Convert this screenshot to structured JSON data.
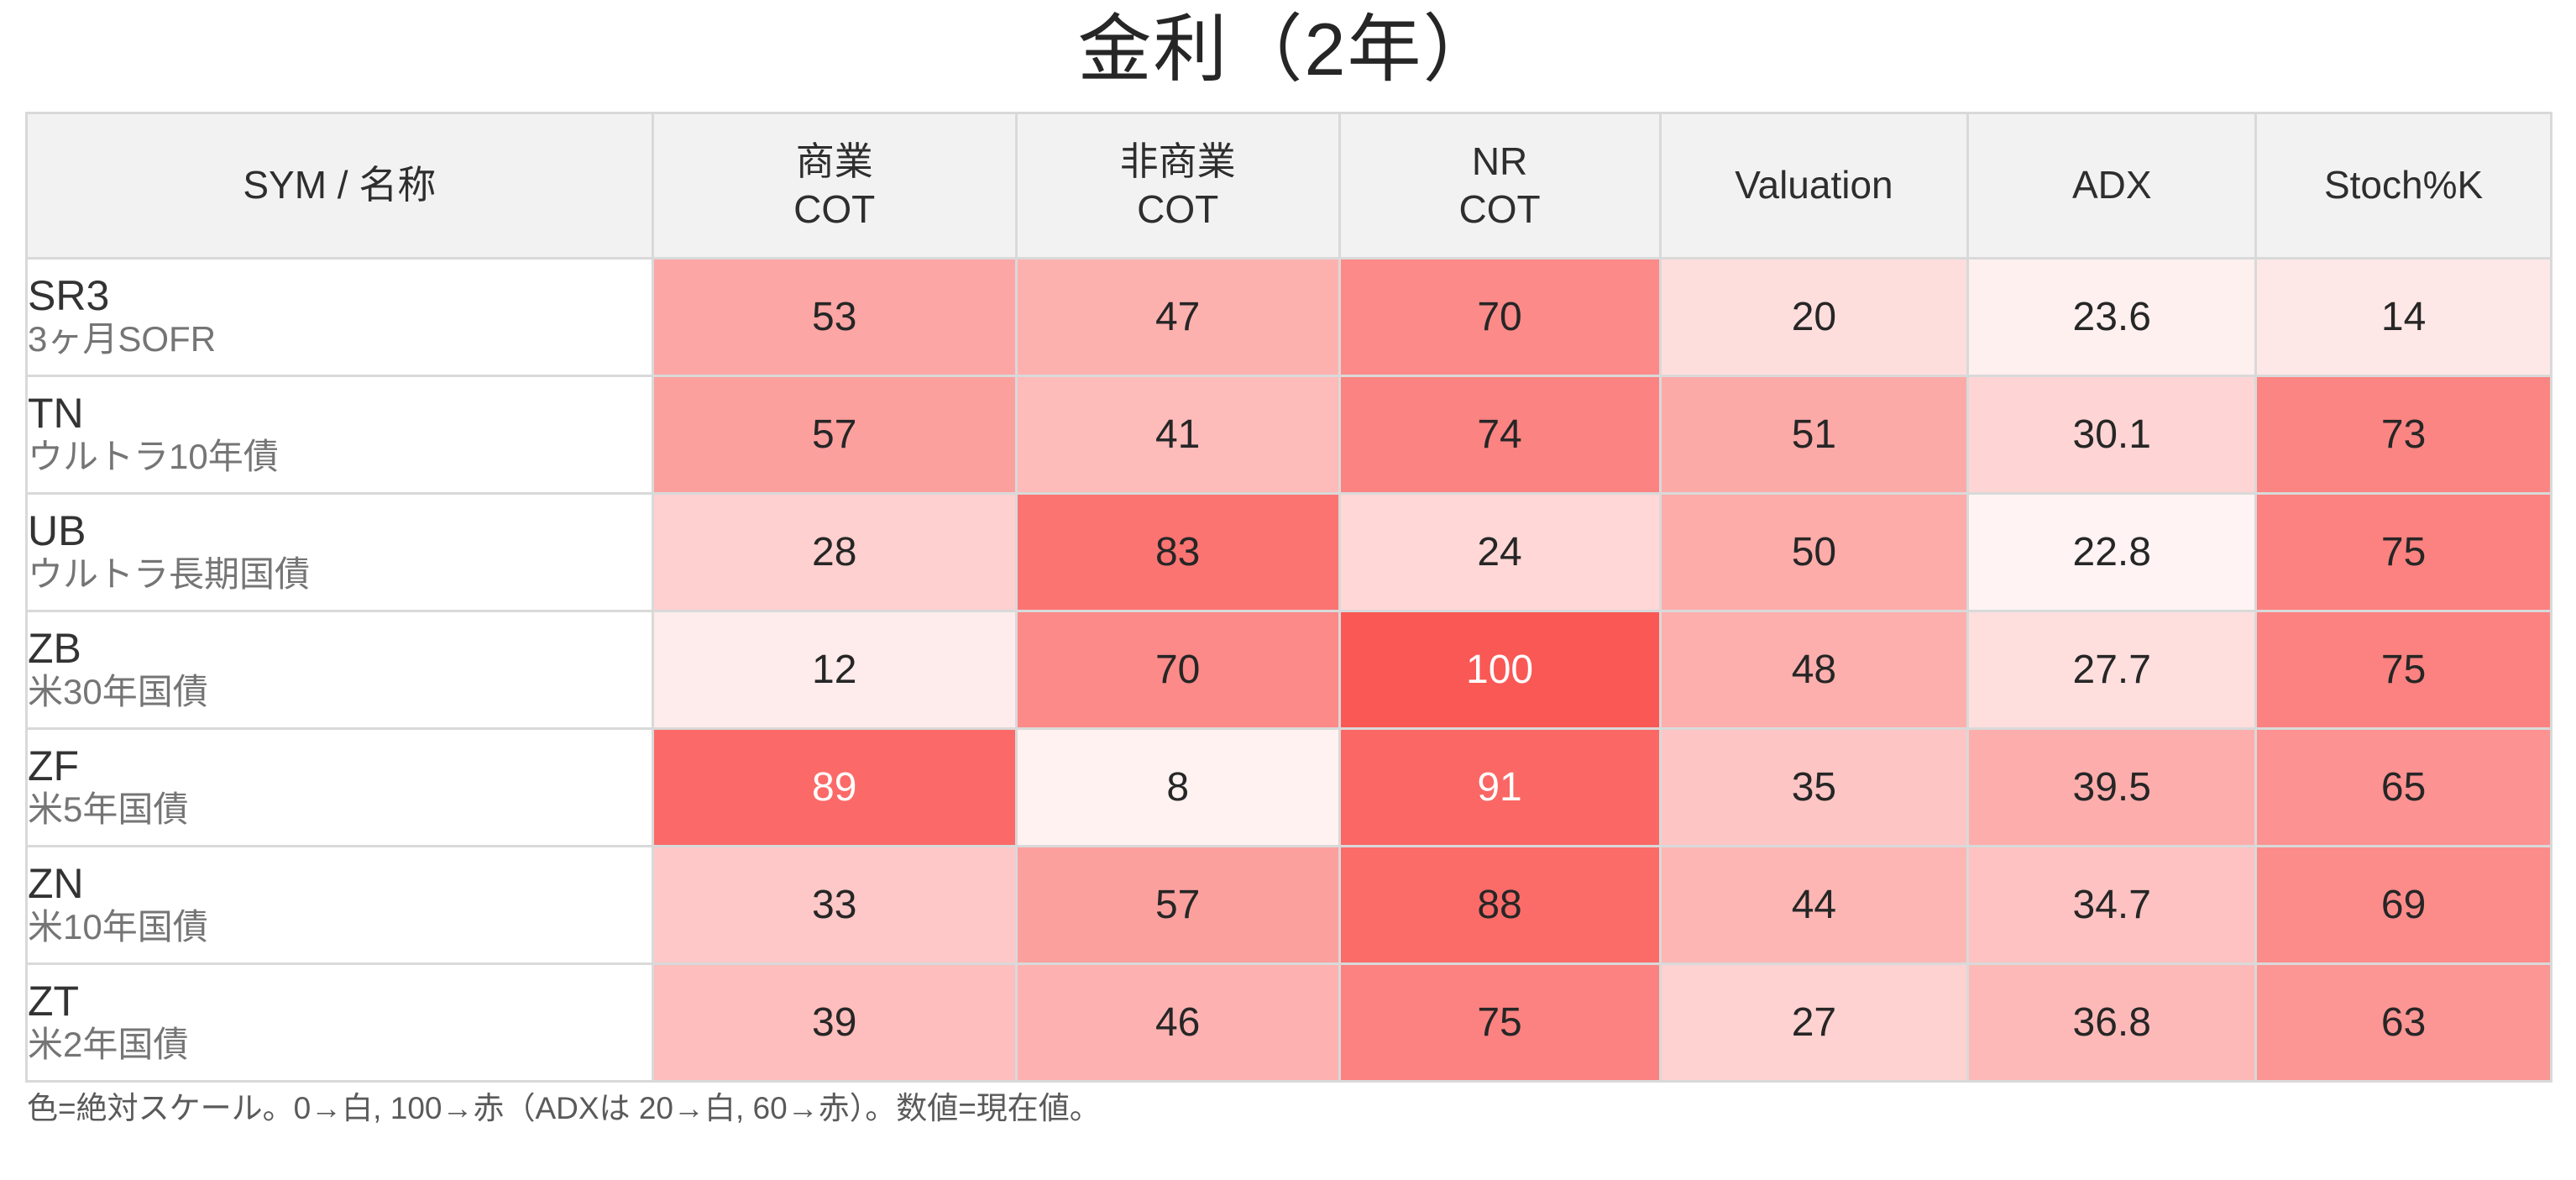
{
  "chart_data": {
    "type": "heatmap",
    "title": "金利（2年）",
    "note": "色=絶対スケール。0→白, 100→赤（ADXは 20→白, 60→赤）。数値=現在値。",
    "columns": [
      {
        "id": "sym-name",
        "label_lines": [
          "SYM / 名称"
        ],
        "scale": null
      },
      {
        "id": "com-cot",
        "label_lines": [
          "商業",
          "COT"
        ],
        "scale": "pct"
      },
      {
        "id": "noncom-cot",
        "label_lines": [
          "非商業",
          "COT"
        ],
        "scale": "pct"
      },
      {
        "id": "nr-cot",
        "label_lines": [
          "NR",
          "COT"
        ],
        "scale": "pct"
      },
      {
        "id": "valuation",
        "label_lines": [
          "Valuation"
        ],
        "scale": "pct"
      },
      {
        "id": "adx",
        "label_lines": [
          "ADX"
        ],
        "scale": "adx"
      },
      {
        "id": "stoch-k",
        "label_lines": [
          "Stoch%K"
        ],
        "scale": "pct"
      }
    ],
    "scales": {
      "pct": {
        "min": 0,
        "max": 100
      },
      "adx": {
        "min": 20,
        "max": 60
      }
    },
    "color_scale": {
      "min_hex": "#ffffff",
      "max_hex": "#fa5855",
      "min_rgb": [
        255,
        255,
        255
      ],
      "max_rgb": [
        250,
        88,
        85
      ],
      "white_text_threshold": 0.885
    },
    "rows": [
      {
        "sym": "SR3",
        "name": "3ヶ月SOFR",
        "values": [
          53,
          47,
          70,
          20,
          23.6,
          14
        ]
      },
      {
        "sym": "TN",
        "name": "ウルトラ10年債",
        "values": [
          57,
          41,
          74,
          51,
          30.1,
          73
        ]
      },
      {
        "sym": "UB",
        "name": "ウルトラ長期国債",
        "values": [
          28,
          83,
          24,
          50,
          22.8,
          75
        ]
      },
      {
        "sym": "ZB",
        "name": "米30年国債",
        "values": [
          12,
          70,
          100,
          48,
          27.7,
          75
        ]
      },
      {
        "sym": "ZF",
        "name": "米5年国債",
        "values": [
          89,
          8,
          91,
          35,
          39.5,
          65
        ]
      },
      {
        "sym": "ZN",
        "name": "米10年国債",
        "values": [
          33,
          57,
          88,
          44,
          34.7,
          69
        ]
      },
      {
        "sym": "ZT",
        "name": "米2年国債",
        "values": [
          39,
          46,
          75,
          27,
          36.8,
          63
        ]
      }
    ]
  }
}
